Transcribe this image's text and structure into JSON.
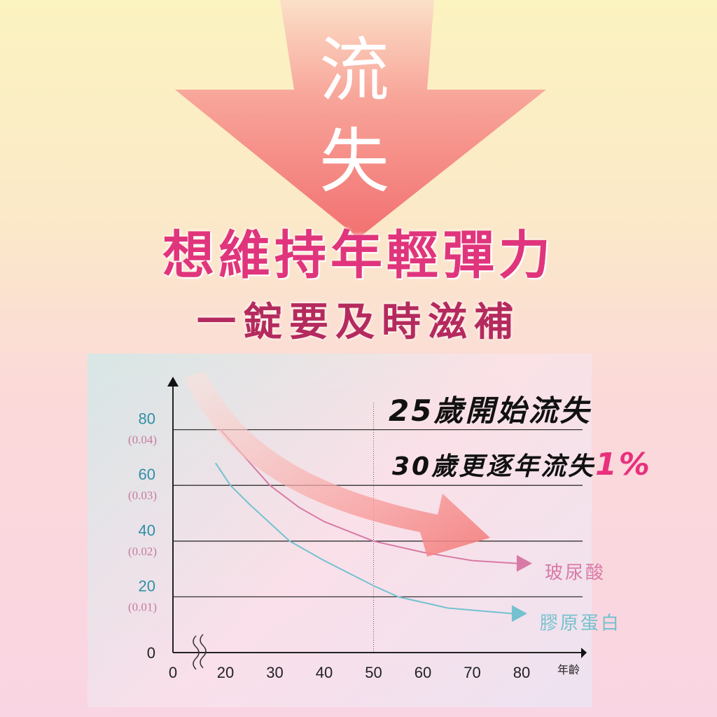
{
  "banner": {
    "arrow_text_1": "流",
    "arrow_text_2": "失",
    "headline": "想維持年輕彈力",
    "subheadline": "一錠要及時滋補"
  },
  "annotations": {
    "line1": "25歲開始流失",
    "line2_prefix": "30歲更逐年流失",
    "line2_highlight": "1%"
  },
  "colors": {
    "arrow": "#f47a7a",
    "hyaluronic": "#d87aa6",
    "collagen": "#74c1cf",
    "headline": "#e0357c",
    "y_primary": "#2f8fa8",
    "y_secondary": "#c67a9e"
  },
  "chart_data": {
    "type": "line",
    "xlabel": "年齡",
    "x_ticks": [
      "0",
      "20",
      "30",
      "40",
      "50",
      "60",
      "70",
      "80"
    ],
    "x_axis_break": true,
    "y_ticks": [
      {
        "value": 0,
        "label": "0",
        "sub": ""
      },
      {
        "value": 20,
        "label": "20",
        "sub": "(0.01)"
      },
      {
        "value": 40,
        "label": "40",
        "sub": "(0.02)"
      },
      {
        "value": 60,
        "label": "60",
        "sub": "(0.03)"
      },
      {
        "value": 80,
        "label": "80",
        "sub": "(0.04)"
      }
    ],
    "ylim": [
      0,
      95
    ],
    "grid": true,
    "reference_line_x": 50,
    "series": [
      {
        "name": "玻尿酸",
        "color": "#d87aa6",
        "x": [
          19,
          25,
          29,
          35,
          40,
          50,
          60,
          70,
          79
        ],
        "y": [
          80,
          68,
          60,
          52,
          47,
          40,
          36,
          33,
          32
        ]
      },
      {
        "name": "膠原蛋白",
        "color": "#74c1cf",
        "x": [
          18,
          21,
          25,
          33,
          40,
          50,
          55,
          65,
          78
        ],
        "y": [
          68,
          60,
          53,
          40,
          33,
          24,
          20,
          16,
          14
        ]
      }
    ]
  }
}
